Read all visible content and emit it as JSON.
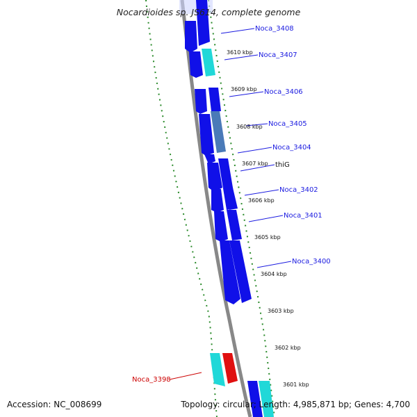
{
  "title": "Nocardioides sp. JS614, complete genome",
  "footer": {
    "accession": "Accession: NC_008699",
    "topology": "Topology: circular; Length: 4,985,871 bp; Genes: 4,700"
  },
  "colors": {
    "forward_gene": "#1010e8",
    "light_gene": "#20d8d8",
    "selected_gene": "#e01010",
    "steelblue_gene": "#4a7ab8",
    "backbone": "#888888",
    "gc_dots": "#2a8a2a",
    "label_line": "#1a1ae0",
    "selected_label": "#cc0000"
  },
  "kbp_ticks": [
    "3610 kbp",
    "3609 kbp",
    "3608 kbp",
    "3607 kbp",
    "3606 kbp",
    "3605 kbp",
    "3604 kbp",
    "3603 kbp",
    "3602 kbp",
    "3601 kbp"
  ],
  "gene_labels": [
    "Noca_3408",
    "Noca_3407",
    "Noca_3406",
    "Noca_3405",
    "Noca_3404",
    "thiG",
    "Noca_3402",
    "Noca_3401",
    "Noca_3400"
  ],
  "selected_gene_label": "Noca_3398"
}
